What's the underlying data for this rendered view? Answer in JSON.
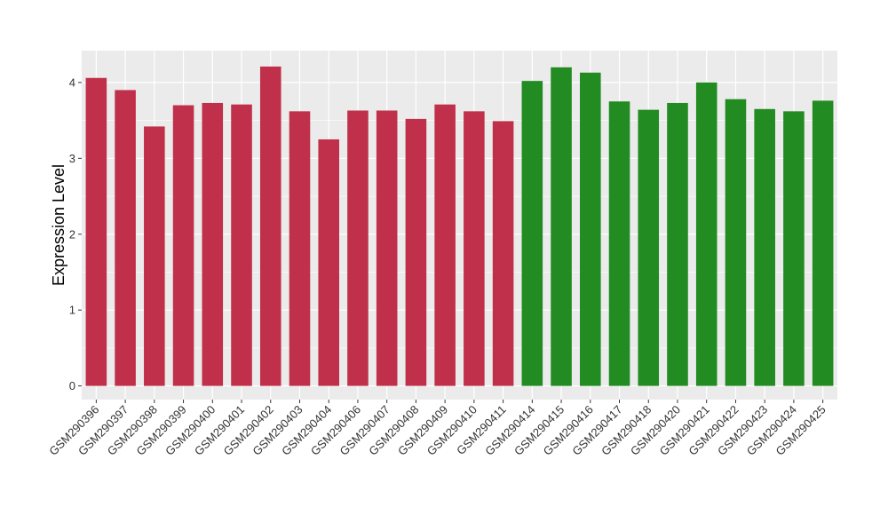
{
  "chart_data": {
    "type": "bar",
    "title": "",
    "xlabel": "",
    "ylabel": "Expression Level",
    "ylim": [
      -0.18,
      4.42
    ],
    "yticks": [
      0,
      1,
      2,
      3,
      4
    ],
    "grid": true,
    "legend": "none",
    "colors": {
      "group_red": "#c0304a",
      "group_green": "#228b22",
      "panel": "#ebebeb",
      "gridline": "#ffffff"
    },
    "categories": [
      "GSM290396",
      "GSM290397",
      "GSM290398",
      "GSM290399",
      "GSM290400",
      "GSM290401",
      "GSM290402",
      "GSM290403",
      "GSM290404",
      "GSM290406",
      "GSM290407",
      "GSM290408",
      "GSM290409",
      "GSM290410",
      "GSM290411",
      "GSM290414",
      "GSM290415",
      "GSM290416",
      "GSM290417",
      "GSM290418",
      "GSM290420",
      "GSM290421",
      "GSM290422",
      "GSM290423",
      "GSM290424",
      "GSM290425"
    ],
    "values": [
      4.06,
      3.9,
      3.42,
      3.7,
      3.73,
      3.71,
      4.21,
      3.62,
      3.25,
      3.63,
      3.63,
      3.52,
      3.71,
      3.62,
      3.49,
      4.02,
      4.2,
      4.13,
      3.75,
      3.64,
      3.73,
      4.0,
      3.78,
      3.65,
      3.62,
      3.76
    ],
    "bar_colors": [
      "#c0304a",
      "#c0304a",
      "#c0304a",
      "#c0304a",
      "#c0304a",
      "#c0304a",
      "#c0304a",
      "#c0304a",
      "#c0304a",
      "#c0304a",
      "#c0304a",
      "#c0304a",
      "#c0304a",
      "#c0304a",
      "#c0304a",
      "#228b22",
      "#228b22",
      "#228b22",
      "#228b22",
      "#228b22",
      "#228b22",
      "#228b22",
      "#228b22",
      "#228b22",
      "#228b22",
      "#228b22"
    ]
  }
}
